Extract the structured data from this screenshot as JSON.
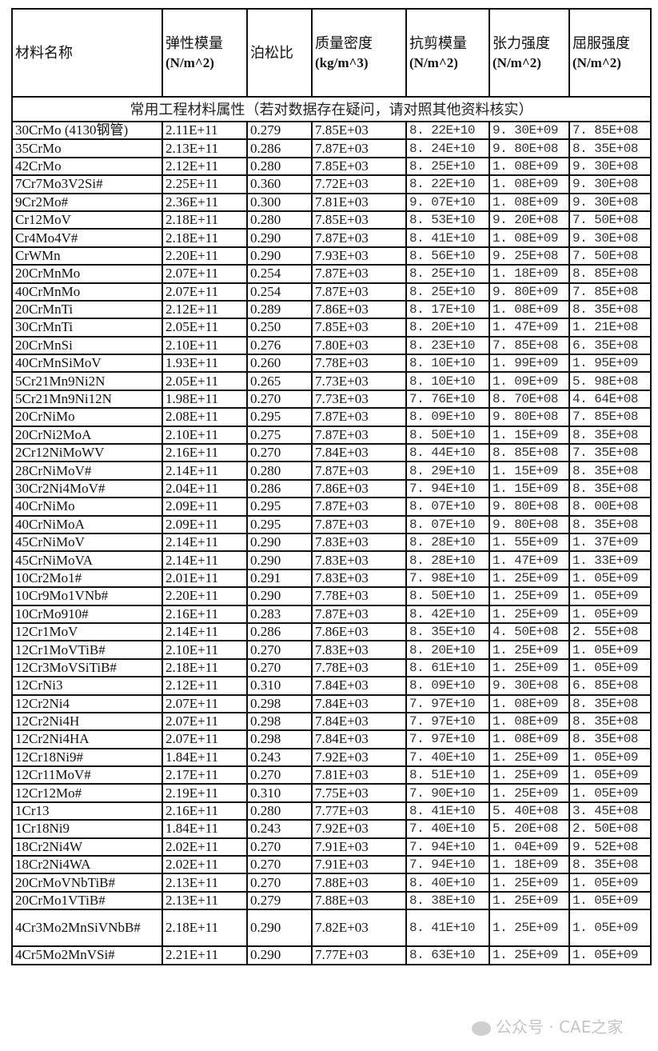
{
  "headers": [
    {
      "name": "材料名称",
      "unit": ""
    },
    {
      "name": "弹性模量",
      "unit": "(N/m^2)"
    },
    {
      "name": "泊松比",
      "unit": ""
    },
    {
      "name": "质量密度",
      "unit": "(kg/m^3)"
    },
    {
      "name": "抗剪模量",
      "unit": "(N/m^2)"
    },
    {
      "name": "张力强度",
      "unit": "(N/m^2)"
    },
    {
      "name": "屈服强度",
      "unit": "(N/m^2)"
    }
  ],
  "note": "常用工程材料属性（若对数据存在疑问，请对照其他资料核实）",
  "rows": [
    [
      "30CrMo (4130钢管)",
      "2.11E+11",
      "0.279",
      "7.85E+03",
      "8. 22E+10",
      "9. 30E+09",
      "7. 85E+08"
    ],
    [
      "35CrMo",
      "2.13E+11",
      "0.286",
      "7.87E+03",
      "8. 24E+10",
      "9. 80E+08",
      "8. 35E+08"
    ],
    [
      "42CrMo",
      "2.12E+11",
      "0.280",
      "7.85E+03",
      "8. 25E+10",
      "1. 08E+09",
      "9. 30E+08"
    ],
    [
      "7Cr7Mo3V2Si#",
      "2.25E+11",
      "0.360",
      "7.72E+03",
      "8. 22E+10",
      "1. 08E+09",
      "9. 30E+08"
    ],
    [
      "9Cr2Mo#",
      "2.36E+11",
      "0.300",
      "7.81E+03",
      "9. 07E+10",
      "1. 08E+09",
      "9. 30E+08"
    ],
    [
      "Cr12MoV",
      "2.18E+11",
      "0.280",
      "7.85E+03",
      "8. 53E+10",
      "9. 20E+08",
      "7. 50E+08"
    ],
    [
      "Cr4Mo4V#",
      "2.18E+11",
      "0.290",
      "7.87E+03",
      "8. 41E+10",
      "1. 08E+09",
      "9. 30E+08"
    ],
    [
      "CrWMn",
      "2.20E+11",
      "0.290",
      "7.93E+03",
      "8. 56E+10",
      "9. 25E+08",
      "7. 50E+08"
    ],
    [
      "20CrMnMo",
      "2.07E+11",
      "0.254",
      "7.87E+03",
      "8. 25E+10",
      "1. 18E+09",
      "8. 85E+08"
    ],
    [
      "40CrMnMo",
      "2.07E+11",
      "0.254",
      "7.87E+03",
      "8. 25E+10",
      "9. 80E+09",
      "7. 85E+08"
    ],
    [
      "20CrMnTi",
      "2.12E+11",
      "0.289",
      "7.86E+03",
      "8. 17E+10",
      "1. 08E+09",
      "8. 35E+08"
    ],
    [
      "30CrMnTi",
      "2.05E+11",
      "0.250",
      "7.85E+03",
      "8. 20E+10",
      "1. 47E+09",
      "1. 21E+08"
    ],
    [
      "20CrMnSi",
      "2.10E+11",
      "0.276",
      "7.80E+03",
      "8. 23E+10",
      "7. 85E+08",
      "6. 35E+08"
    ],
    [
      "40CrMnSiMoV",
      "1.93E+11",
      "0.260",
      "7.78E+03",
      "8. 10E+10",
      "1. 99E+09",
      "1. 95E+09"
    ],
    [
      "5Cr21Mn9Ni2N",
      "2.05E+11",
      "0.265",
      "7.73E+03",
      "8. 10E+10",
      "1. 09E+09",
      "5. 98E+08"
    ],
    [
      "5Cr21Mn9Ni12N",
      "1.98E+11",
      "0.270",
      "7.73E+03",
      "7. 76E+10",
      "8. 70E+08",
      "4. 64E+08"
    ],
    [
      "20CrNiMo",
      "2.08E+11",
      "0.295",
      "7.87E+03",
      "8. 09E+10",
      "9. 80E+08",
      "7. 85E+08"
    ],
    [
      "20CrNi2MoA",
      "2.10E+11",
      "0.275",
      "7.87E+03",
      "8. 50E+10",
      "1. 15E+09",
      "8. 35E+08"
    ],
    [
      "2Cr12NiMoWV",
      "2.16E+11",
      "0.270",
      "7.84E+03",
      "8. 44E+10",
      "8. 85E+08",
      "7. 35E+08"
    ],
    [
      "28CrNiMoV#",
      "2.14E+11",
      "0.280",
      "7.87E+03",
      "8. 29E+10",
      "1. 15E+09",
      "8. 35E+08"
    ],
    [
      "30Cr2Ni4MoV#",
      "2.04E+11",
      "0.286",
      "7.86E+03",
      "7. 94E+10",
      "1. 15E+09",
      "8. 35E+08"
    ],
    [
      "40CrNiMo",
      "2.09E+11",
      "0.295",
      "7.87E+03",
      "8. 07E+10",
      "9. 80E+08",
      "8. 00E+08"
    ],
    [
      "40CrNiMoA",
      "2.09E+11",
      "0.295",
      "7.87E+03",
      "8. 07E+10",
      "9. 80E+08",
      "8. 35E+08"
    ],
    [
      "45CrNiMoV",
      "2.14E+11",
      "0.290",
      "7.83E+03",
      "8. 28E+10",
      "1. 55E+09",
      "1. 37E+09"
    ],
    [
      "45CrNiMoVA",
      "2.14E+11",
      "0.290",
      "7.83E+03",
      "8. 28E+10",
      "1. 47E+09",
      "1. 33E+09"
    ],
    [
      "10Cr2Mo1#",
      "2.01E+11",
      "0.291",
      "7.83E+03",
      "7. 98E+10",
      "1. 25E+09",
      "1. 05E+09"
    ],
    [
      "10Cr9Mo1VNb#",
      "2.20E+11",
      "0.290",
      "7.78E+03",
      "8. 50E+10",
      "1. 25E+09",
      "1. 05E+09"
    ],
    [
      "10CrMo910#",
      "2.16E+11",
      "0.283",
      "7.87E+03",
      "8. 42E+10",
      "1. 25E+09",
      "1. 05E+09"
    ],
    [
      "12Cr1MoV",
      "2.14E+11",
      "0.286",
      "7.86E+03",
      "8. 35E+10",
      "4. 50E+08",
      "2. 55E+08"
    ],
    [
      "12Cr1MoVTiB#",
      "2.10E+11",
      "0.270",
      "7.83E+03",
      "8. 20E+10",
      "1. 25E+09",
      "1. 05E+09"
    ],
    [
      "12Cr3MoVSiTiB#",
      "2.18E+11",
      "0.270",
      "7.78E+03",
      "8. 61E+10",
      "1. 25E+09",
      "1. 05E+09"
    ],
    [
      "12CrNi3",
      "2.12E+11",
      "0.310",
      "7.84E+03",
      "8. 09E+10",
      "9. 30E+08",
      "6. 85E+08"
    ],
    [
      "12Cr2Ni4",
      "2.07E+11",
      "0.298",
      "7.84E+03",
      "7. 97E+10",
      "1. 08E+09",
      "8. 35E+08"
    ],
    [
      "12Cr2Ni4H",
      "2.07E+11",
      "0.298",
      "7.84E+03",
      "7. 97E+10",
      "1. 08E+09",
      "8. 35E+08"
    ],
    [
      "12Cr2Ni4HA",
      "2.07E+11",
      "0.298",
      "7.84E+03",
      "7. 97E+10",
      "1. 08E+09",
      "8. 35E+08"
    ],
    [
      "12Cr18Ni9#",
      "1.84E+11",
      "0.243",
      "7.92E+03",
      "7. 40E+10",
      "1. 25E+09",
      "1. 05E+09"
    ],
    [
      "12Cr11MoV#",
      "2.17E+11",
      "0.270",
      "7.81E+03",
      "8. 51E+10",
      "1. 25E+09",
      "1. 05E+09"
    ],
    [
      "12Cr12Mo#",
      "2.19E+11",
      "0.310",
      "7.75E+03",
      "7. 90E+10",
      "1. 25E+09",
      "1. 05E+09"
    ],
    [
      "1Cr13",
      "2.16E+11",
      "0.280",
      "7.77E+03",
      "8. 41E+10",
      "5. 40E+08",
      "3. 45E+08"
    ],
    [
      "1Cr18Ni9",
      "1.84E+11",
      "0.243",
      "7.92E+03",
      "7. 40E+10",
      "5. 20E+08",
      "2. 50E+08"
    ],
    [
      "18Cr2Ni4W",
      "2.02E+11",
      "0.270",
      "7.91E+03",
      "7. 94E+10",
      "1. 04E+09",
      "9. 52E+08"
    ],
    [
      "18Cr2Ni4WA",
      "2.02E+11",
      "0.270",
      "7.91E+03",
      "7. 94E+10",
      "1. 18E+09",
      "8. 35E+08"
    ],
    [
      "20CrMoVNbTiB#",
      "2.13E+11",
      "0.270",
      "7.88E+03",
      "8. 40E+10",
      "1. 25E+09",
      "1. 05E+09"
    ],
    [
      "20CrMo1VTiB#",
      "2.13E+11",
      "0.279",
      "7.88E+03",
      "8. 38E+10",
      "1. 25E+09",
      "1. 05E+09"
    ],
    [
      "4Cr3Mo2MnSiVNbB#",
      "2.18E+11",
      "0.290",
      "7.82E+03",
      "8. 41E+10",
      "1. 25E+09",
      "1. 05E+09"
    ],
    [
      "4Cr5Mo2MnVSi#",
      "2.21E+11",
      "0.290",
      "7.77E+03",
      "8. 63E+10",
      "1. 25E+09",
      "1. 05E+09"
    ]
  ],
  "watermark": "公众号 · CAE之家"
}
